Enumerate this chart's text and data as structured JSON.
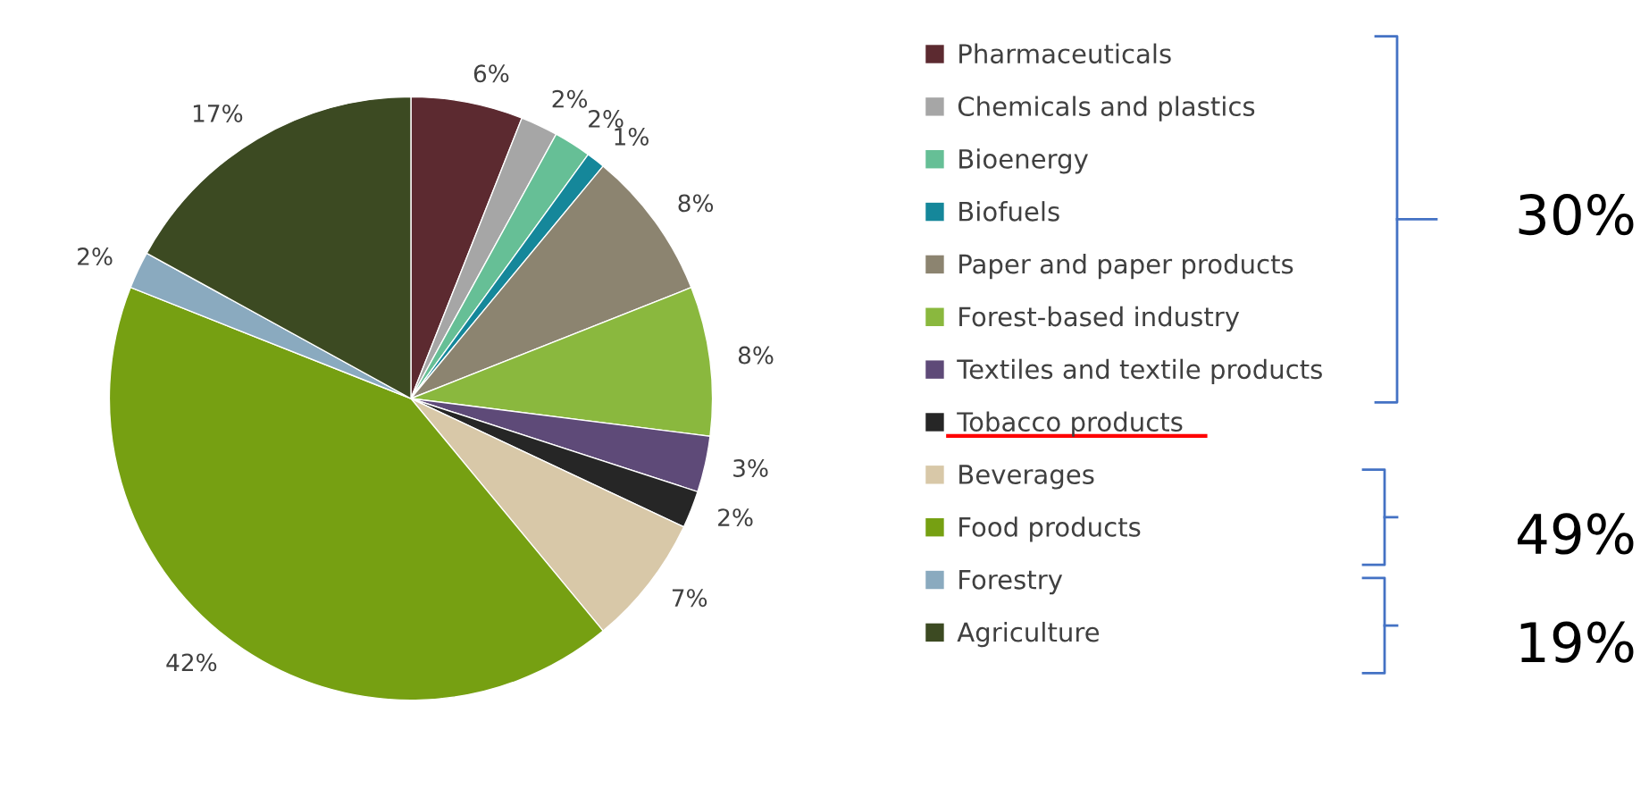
{
  "chart_data": {
    "type": "pie",
    "categories": [
      "Pharmaceuticals",
      "Chemicals and plastics",
      "Bioenergy",
      "Biofuels",
      "Paper and paper products",
      "Forest-based industry",
      "Textiles and textile products",
      "Tobacco products",
      "Beverages",
      "Food products",
      "Forestry",
      "Agriculture"
    ],
    "values": [
      6,
      2,
      2,
      1,
      8,
      8,
      3,
      2,
      7,
      42,
      2,
      17
    ],
    "value_labels": [
      "6%",
      "2%",
      "2%",
      "1%",
      "8%",
      "8%",
      "3%",
      "2%",
      "7%",
      "42%",
      "2%",
      "17%"
    ],
    "colors": [
      "#5c2a30",
      "#a6a6a6",
      "#66bf96",
      "#15879a",
      "#8c8470",
      "#8ab83e",
      "#5e4a78",
      "#262626",
      "#d8c8a8",
      "#76a012",
      "#8aaabf",
      "#3c4a22"
    ],
    "legend": "right",
    "annotations": [
      "30%",
      "49%",
      "19%"
    ]
  }
}
